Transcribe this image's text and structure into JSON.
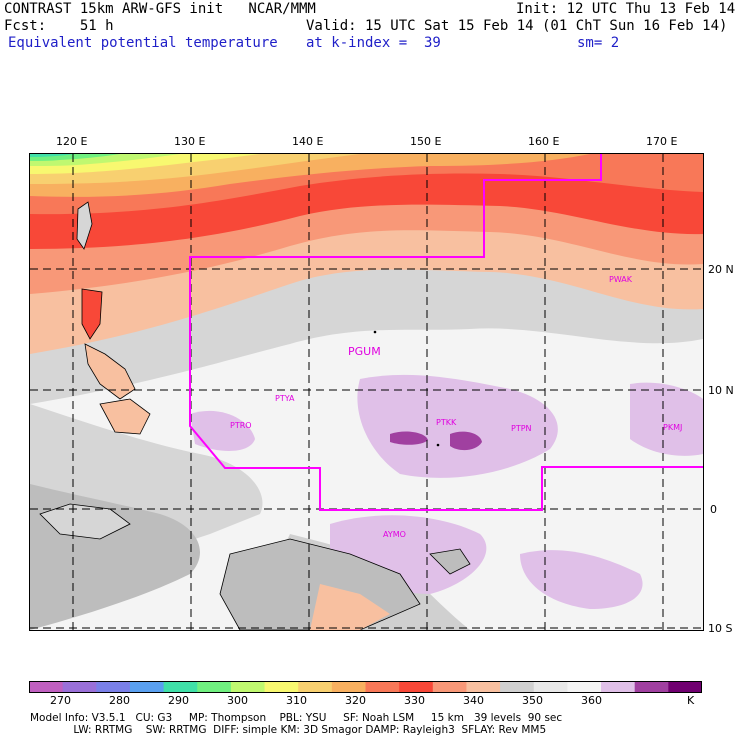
{
  "header": {
    "line1_left": "CONTRAST 15km ARW-GFS init   NCAR/MMM",
    "line1_right": "Init: 12 UTC Thu 13 Feb 14",
    "fcst_label": "Fcst:    51 h",
    "valid": "Valid: 15 UTC Sat 15 Feb 14 (01 ChT Sun 16 Feb 14)",
    "field": "Equivalent potential temperature",
    "level": "at k-index =  39",
    "smoothing": "sm= 2"
  },
  "axes": {
    "lon_labels": [
      "120 E",
      "130 E",
      "140 E",
      "150 E",
      "160 E",
      "170 E"
    ],
    "lat_labels": [
      "20 N",
      "10 N",
      "0",
      "10 S"
    ]
  },
  "stations": [
    "PGUM",
    "PTYA",
    "PTRO",
    "PTKK",
    "PTPN",
    "PKMJ",
    "PWAK",
    "AYMO"
  ],
  "colorbar": {
    "ticks": [
      "270",
      "280",
      "290",
      "300",
      "310",
      "320",
      "330",
      "340",
      "350",
      "360",
      "K"
    ],
    "colors": [
      "#c060c0",
      "#9a70d8",
      "#7a80e8",
      "#5aa0f0",
      "#40e0a8",
      "#70f080",
      "#c0f870",
      "#f8f870",
      "#f8d070",
      "#f8b060",
      "#f87858",
      "#f84838",
      "#f89878",
      "#f8c0a0",
      "#d0d0d0",
      "#e8e8e8",
      "#f4f4f4",
      "#e0c0e8",
      "#a040a0",
      "#700070"
    ]
  },
  "footer": {
    "line1": "Model Info: V3.5.1   CU: G3     MP: Thompson    PBL: YSU     SF: Noah LSM     15 km   39 levels  90 sec",
    "line2": "             LW: RRTMG    SW: RRTMG  DIFF: simple KM: 3D Smagor DAMP: Rayleigh3  SFLAY: Rev MM5"
  }
}
